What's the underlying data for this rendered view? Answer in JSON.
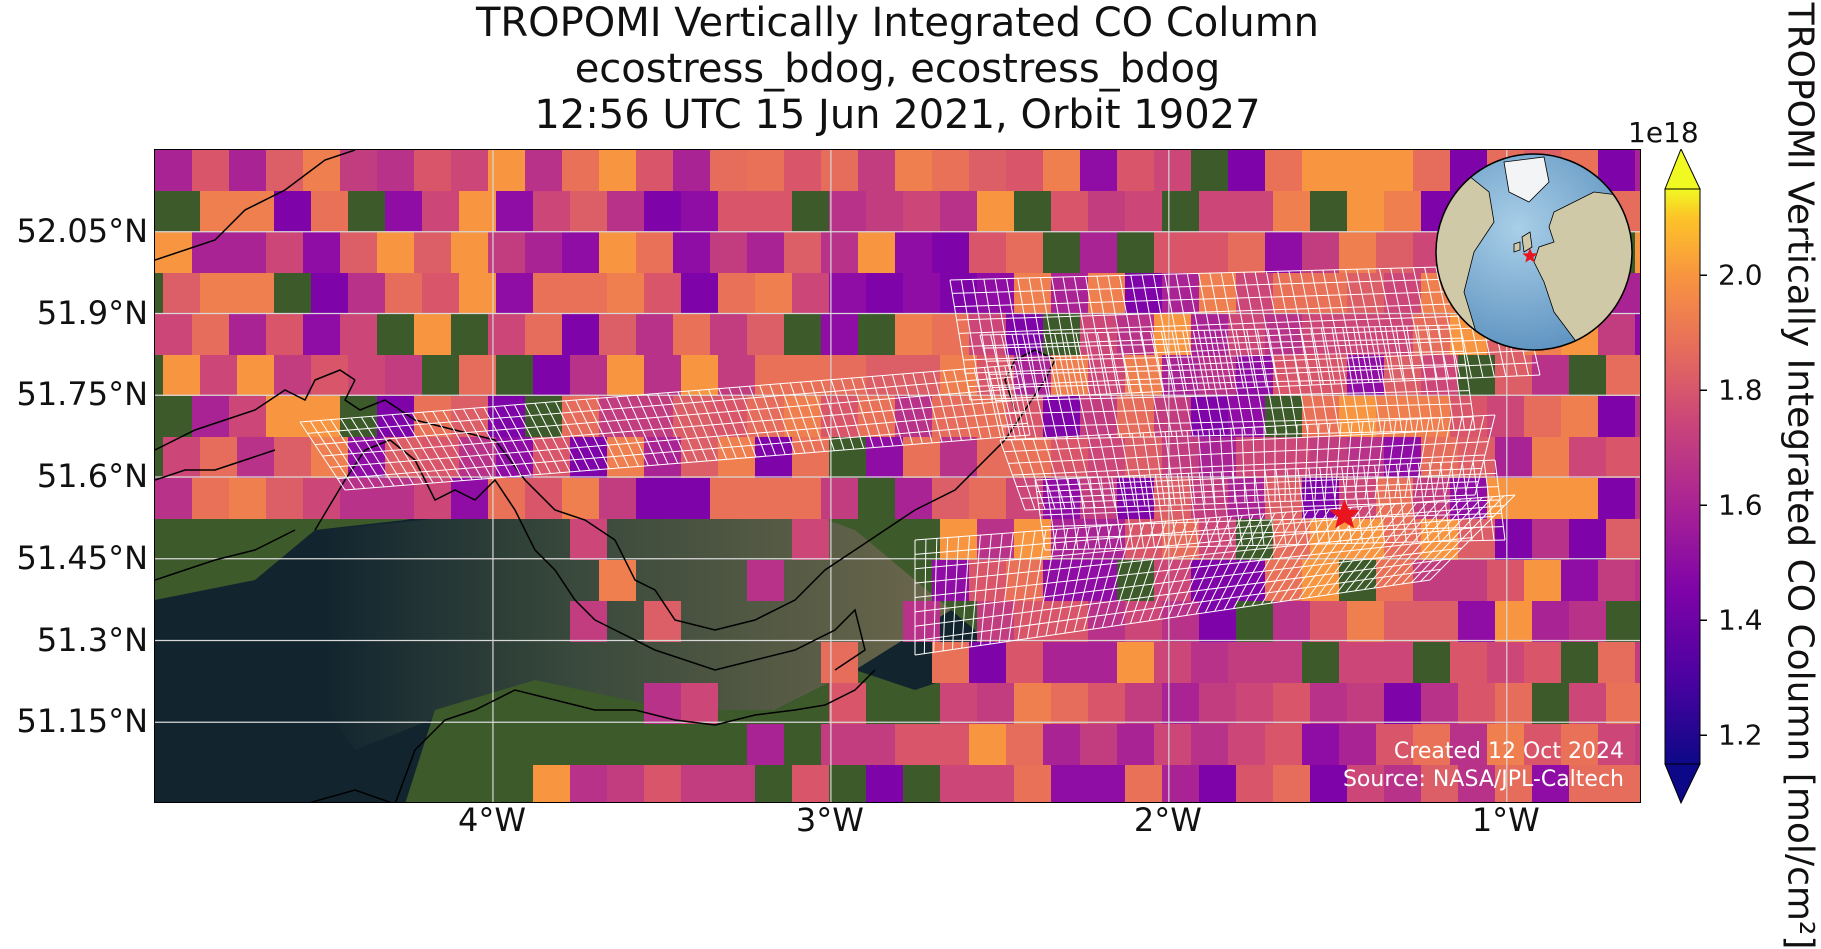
{
  "title": {
    "line1": "TROPOMI Vertically Integrated CO Column",
    "line2": "ecostress_bdog, ecostress_bdog",
    "line3": "12:56 UTC 15 Jun 2021, Orbit 19027"
  },
  "axes": {
    "lat_labels": [
      "52.05°N",
      "51.9°N",
      "51.75°N",
      "51.6°N",
      "51.45°N",
      "51.3°N",
      "51.15°N"
    ],
    "lat_values": [
      52.05,
      51.9,
      51.75,
      51.6,
      51.45,
      51.3,
      51.15
    ],
    "lon_labels": [
      "4°W",
      "3°W",
      "2°W",
      "1°W"
    ],
    "lon_values": [
      -4,
      -3,
      -2,
      -1
    ],
    "lon_range": [
      -5.0,
      -0.6
    ],
    "lat_range": [
      51.0,
      52.2
    ],
    "gridlines": true
  },
  "colorbar": {
    "colormap": "plasma",
    "exponent_label": "1e18",
    "tick_labels": [
      "2.0",
      "1.8",
      "1.6",
      "1.4",
      "1.2"
    ],
    "tick_values": [
      2.0,
      1.8,
      1.6,
      1.4,
      1.2
    ],
    "range": [
      1.15,
      2.15
    ],
    "label": "TROPOMI Vertically Integrated CO Column [mol/cm²]",
    "extend": "both"
  },
  "credits": {
    "created": "Created 12 Oct 2024",
    "source": "Source: NASA/JPL-Caltech"
  },
  "marker": {
    "lon": -1.48,
    "lat": 51.53,
    "color": "#e8141e",
    "symbol": "star"
  },
  "inset": {
    "type": "globe",
    "marker_color": "#e8141e"
  },
  "colors": {
    "sea": "#12252f",
    "land": "#3d5a2a",
    "estuary": "#6e6a48",
    "coast": "#000000",
    "footprint_grid": "#ffffff"
  }
}
